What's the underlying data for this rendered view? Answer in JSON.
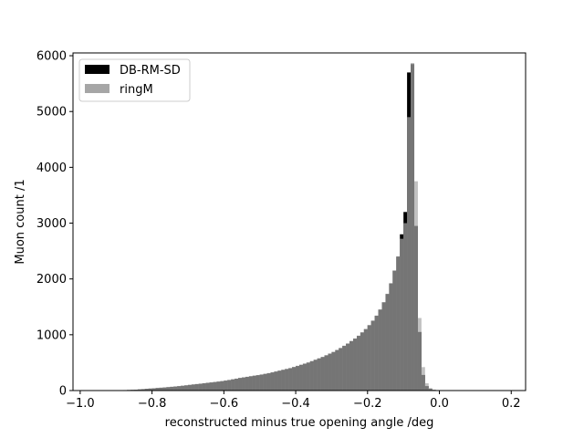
{
  "chart_data": {
    "type": "bar",
    "subtype": "histogram",
    "xlabel": "reconstructed minus true opening angle /deg",
    "ylabel": "Muon count /1",
    "xlim": [
      -1.02,
      0.24
    ],
    "ylim": [
      0,
      6050
    ],
    "xticks": [
      -1.0,
      -0.8,
      -0.6,
      -0.4,
      -0.2,
      0.0,
      0.2
    ],
    "xtick_labels": [
      "−1.0",
      "−0.8",
      "−0.6",
      "−0.4",
      "−0.2",
      "0.0",
      "0.2"
    ],
    "yticks": [
      0,
      1000,
      2000,
      3000,
      4000,
      5000,
      6000
    ],
    "ytick_labels": [
      "0",
      "1000",
      "2000",
      "3000",
      "4000",
      "5000",
      "6000"
    ],
    "grid": false,
    "legend_position": "upper-left",
    "bin_start": -1.0,
    "bin_width": 0.01,
    "series": [
      {
        "name": "DB-RM-SD",
        "color": "#000000",
        "values": [
          0,
          0,
          0,
          0,
          0,
          1,
          2,
          3,
          3,
          4,
          5,
          6,
          8,
          10,
          12,
          15,
          20,
          25,
          30,
          35,
          40,
          45,
          50,
          55,
          60,
          66,
          72,
          78,
          85,
          92,
          100,
          108,
          115,
          122,
          130,
          138,
          145,
          152,
          160,
          168,
          178,
          188,
          200,
          212,
          225,
          235,
          245,
          255,
          265,
          275,
          285,
          298,
          310,
          325,
          340,
          355,
          370,
          385,
          400,
          420,
          440,
          460,
          480,
          500,
          525,
          550,
          575,
          600,
          630,
          660,
          690,
          725,
          760,
          800,
          840,
          885,
          930,
          980,
          1040,
          1100,
          1170,
          1250,
          1340,
          1450,
          1580,
          1730,
          1920,
          2150,
          2400,
          2800,
          3200,
          5700,
          5850,
          2950,
          1050,
          280,
          80,
          30,
          12,
          5,
          2,
          1,
          0,
          0,
          0,
          0,
          0,
          0,
          0,
          0,
          0,
          0,
          0,
          0,
          0,
          0,
          0,
          0,
          0,
          0
        ]
      },
      {
        "name": "ringM",
        "color": "#a6a6a6",
        "values": [
          0,
          0,
          0,
          0,
          0,
          1,
          2,
          3,
          4,
          5,
          6,
          7,
          9,
          11,
          13,
          16,
          21,
          26,
          31,
          36,
          41,
          46,
          51,
          57,
          63,
          69,
          75,
          81,
          88,
          95,
          103,
          110,
          118,
          125,
          133,
          140,
          148,
          156,
          164,
          172,
          182,
          192,
          203,
          215,
          228,
          238,
          248,
          258,
          268,
          278,
          290,
          302,
          315,
          330,
          345,
          360,
          375,
          390,
          405,
          425,
          445,
          465,
          485,
          505,
          530,
          555,
          580,
          605,
          635,
          665,
          695,
          730,
          765,
          805,
          845,
          890,
          935,
          985,
          1045,
          1105,
          1175,
          1255,
          1345,
          1455,
          1585,
          1735,
          1925,
          2150,
          2400,
          2720,
          3000,
          4900,
          5870,
          3750,
          1300,
          420,
          130,
          45,
          16,
          6,
          2,
          1,
          0,
          0,
          0,
          0,
          0,
          0,
          0,
          0,
          0,
          0,
          0,
          0,
          0,
          0,
          0,
          0,
          0
        ]
      }
    ]
  }
}
